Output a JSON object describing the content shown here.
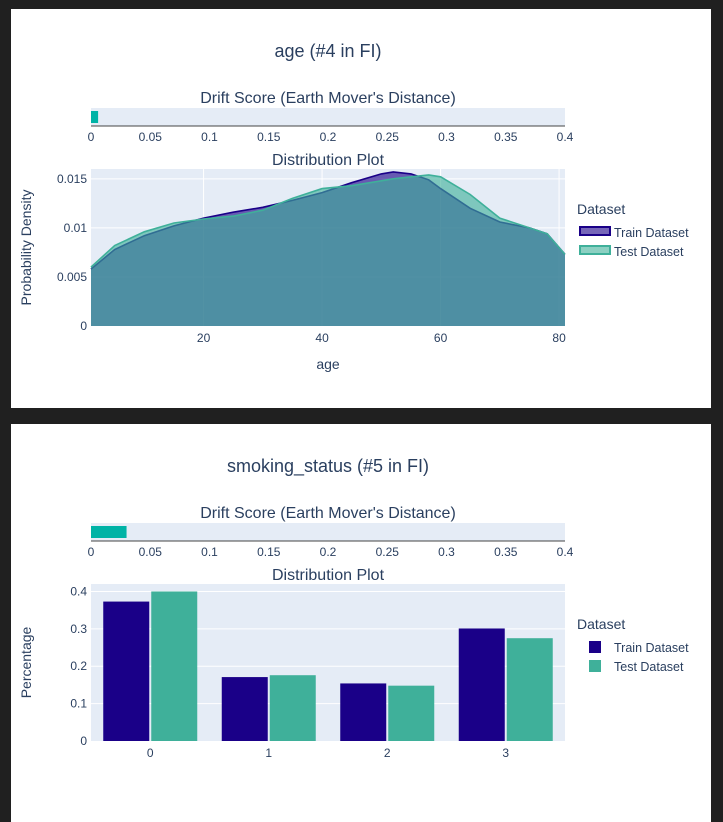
{
  "colors": {
    "train": "#1a0088",
    "test": "#3fb09a",
    "drift_bar": "#00b3a6",
    "plot_bg": "#e5ecf6",
    "text": "#2a3f5f"
  },
  "chart_data": [
    {
      "type": "area",
      "figure_title": "age (#4 in FI)",
      "drift": {
        "title": "Drift Score (Earth Mover's Distance)",
        "value": 0.006,
        "xlim": [
          0,
          0.4
        ],
        "ticks": [
          "0",
          "0.05",
          "0.1",
          "0.15",
          "0.2",
          "0.25",
          "0.3",
          "0.35",
          "0.4"
        ]
      },
      "title": "Distribution Plot",
      "xlabel": "age",
      "ylabel": "Probability Density",
      "xlim": [
        1,
        81
      ],
      "ylim": [
        0,
        0.016
      ],
      "x_ticks": [
        "20",
        "40",
        "60",
        "80"
      ],
      "y_ticks": [
        "0",
        "0.005",
        "0.01",
        "0.015"
      ],
      "grid": true,
      "legend": {
        "title": "Dataset",
        "position": "right"
      },
      "x": [
        1,
        5,
        10,
        15,
        20,
        25,
        30,
        35,
        40,
        45,
        50,
        52,
        55,
        58,
        60,
        65,
        70,
        75,
        78,
        81
      ],
      "series": [
        {
          "name": "Train Dataset",
          "values": [
            0.0058,
            0.0078,
            0.0092,
            0.0102,
            0.011,
            0.0116,
            0.0121,
            0.0128,
            0.0136,
            0.0146,
            0.0155,
            0.0157,
            0.0155,
            0.0149,
            0.014,
            0.012,
            0.0106,
            0.01,
            0.0094,
            0.0073
          ]
        },
        {
          "name": "Test Dataset",
          "values": [
            0.006,
            0.0082,
            0.0096,
            0.0105,
            0.0109,
            0.0112,
            0.0118,
            0.013,
            0.014,
            0.0143,
            0.0148,
            0.015,
            0.0152,
            0.0154,
            0.0152,
            0.0134,
            0.011,
            0.01,
            0.0094,
            0.0073
          ]
        }
      ]
    },
    {
      "type": "bar",
      "figure_title": "smoking_status (#5 in FI)",
      "drift": {
        "title": "Drift Score (Earth Mover's Distance)",
        "value": 0.03,
        "xlim": [
          0,
          0.4
        ],
        "ticks": [
          "0",
          "0.05",
          "0.1",
          "0.15",
          "0.2",
          "0.25",
          "0.3",
          "0.35",
          "0.4"
        ]
      },
      "title": "Distribution Plot",
      "xlabel": "",
      "ylabel": "Percentage",
      "ylim": [
        0,
        0.42
      ],
      "y_ticks": [
        "0",
        "0.1",
        "0.2",
        "0.3",
        "0.4"
      ],
      "categories": [
        "0",
        "1",
        "2",
        "3"
      ],
      "grid": true,
      "legend": {
        "title": "Dataset",
        "position": "right"
      },
      "series": [
        {
          "name": "Train Dataset",
          "values": [
            0.373,
            0.171,
            0.154,
            0.301
          ]
        },
        {
          "name": "Test Dataset",
          "values": [
            0.4,
            0.176,
            0.148,
            0.275
          ]
        }
      ]
    }
  ]
}
